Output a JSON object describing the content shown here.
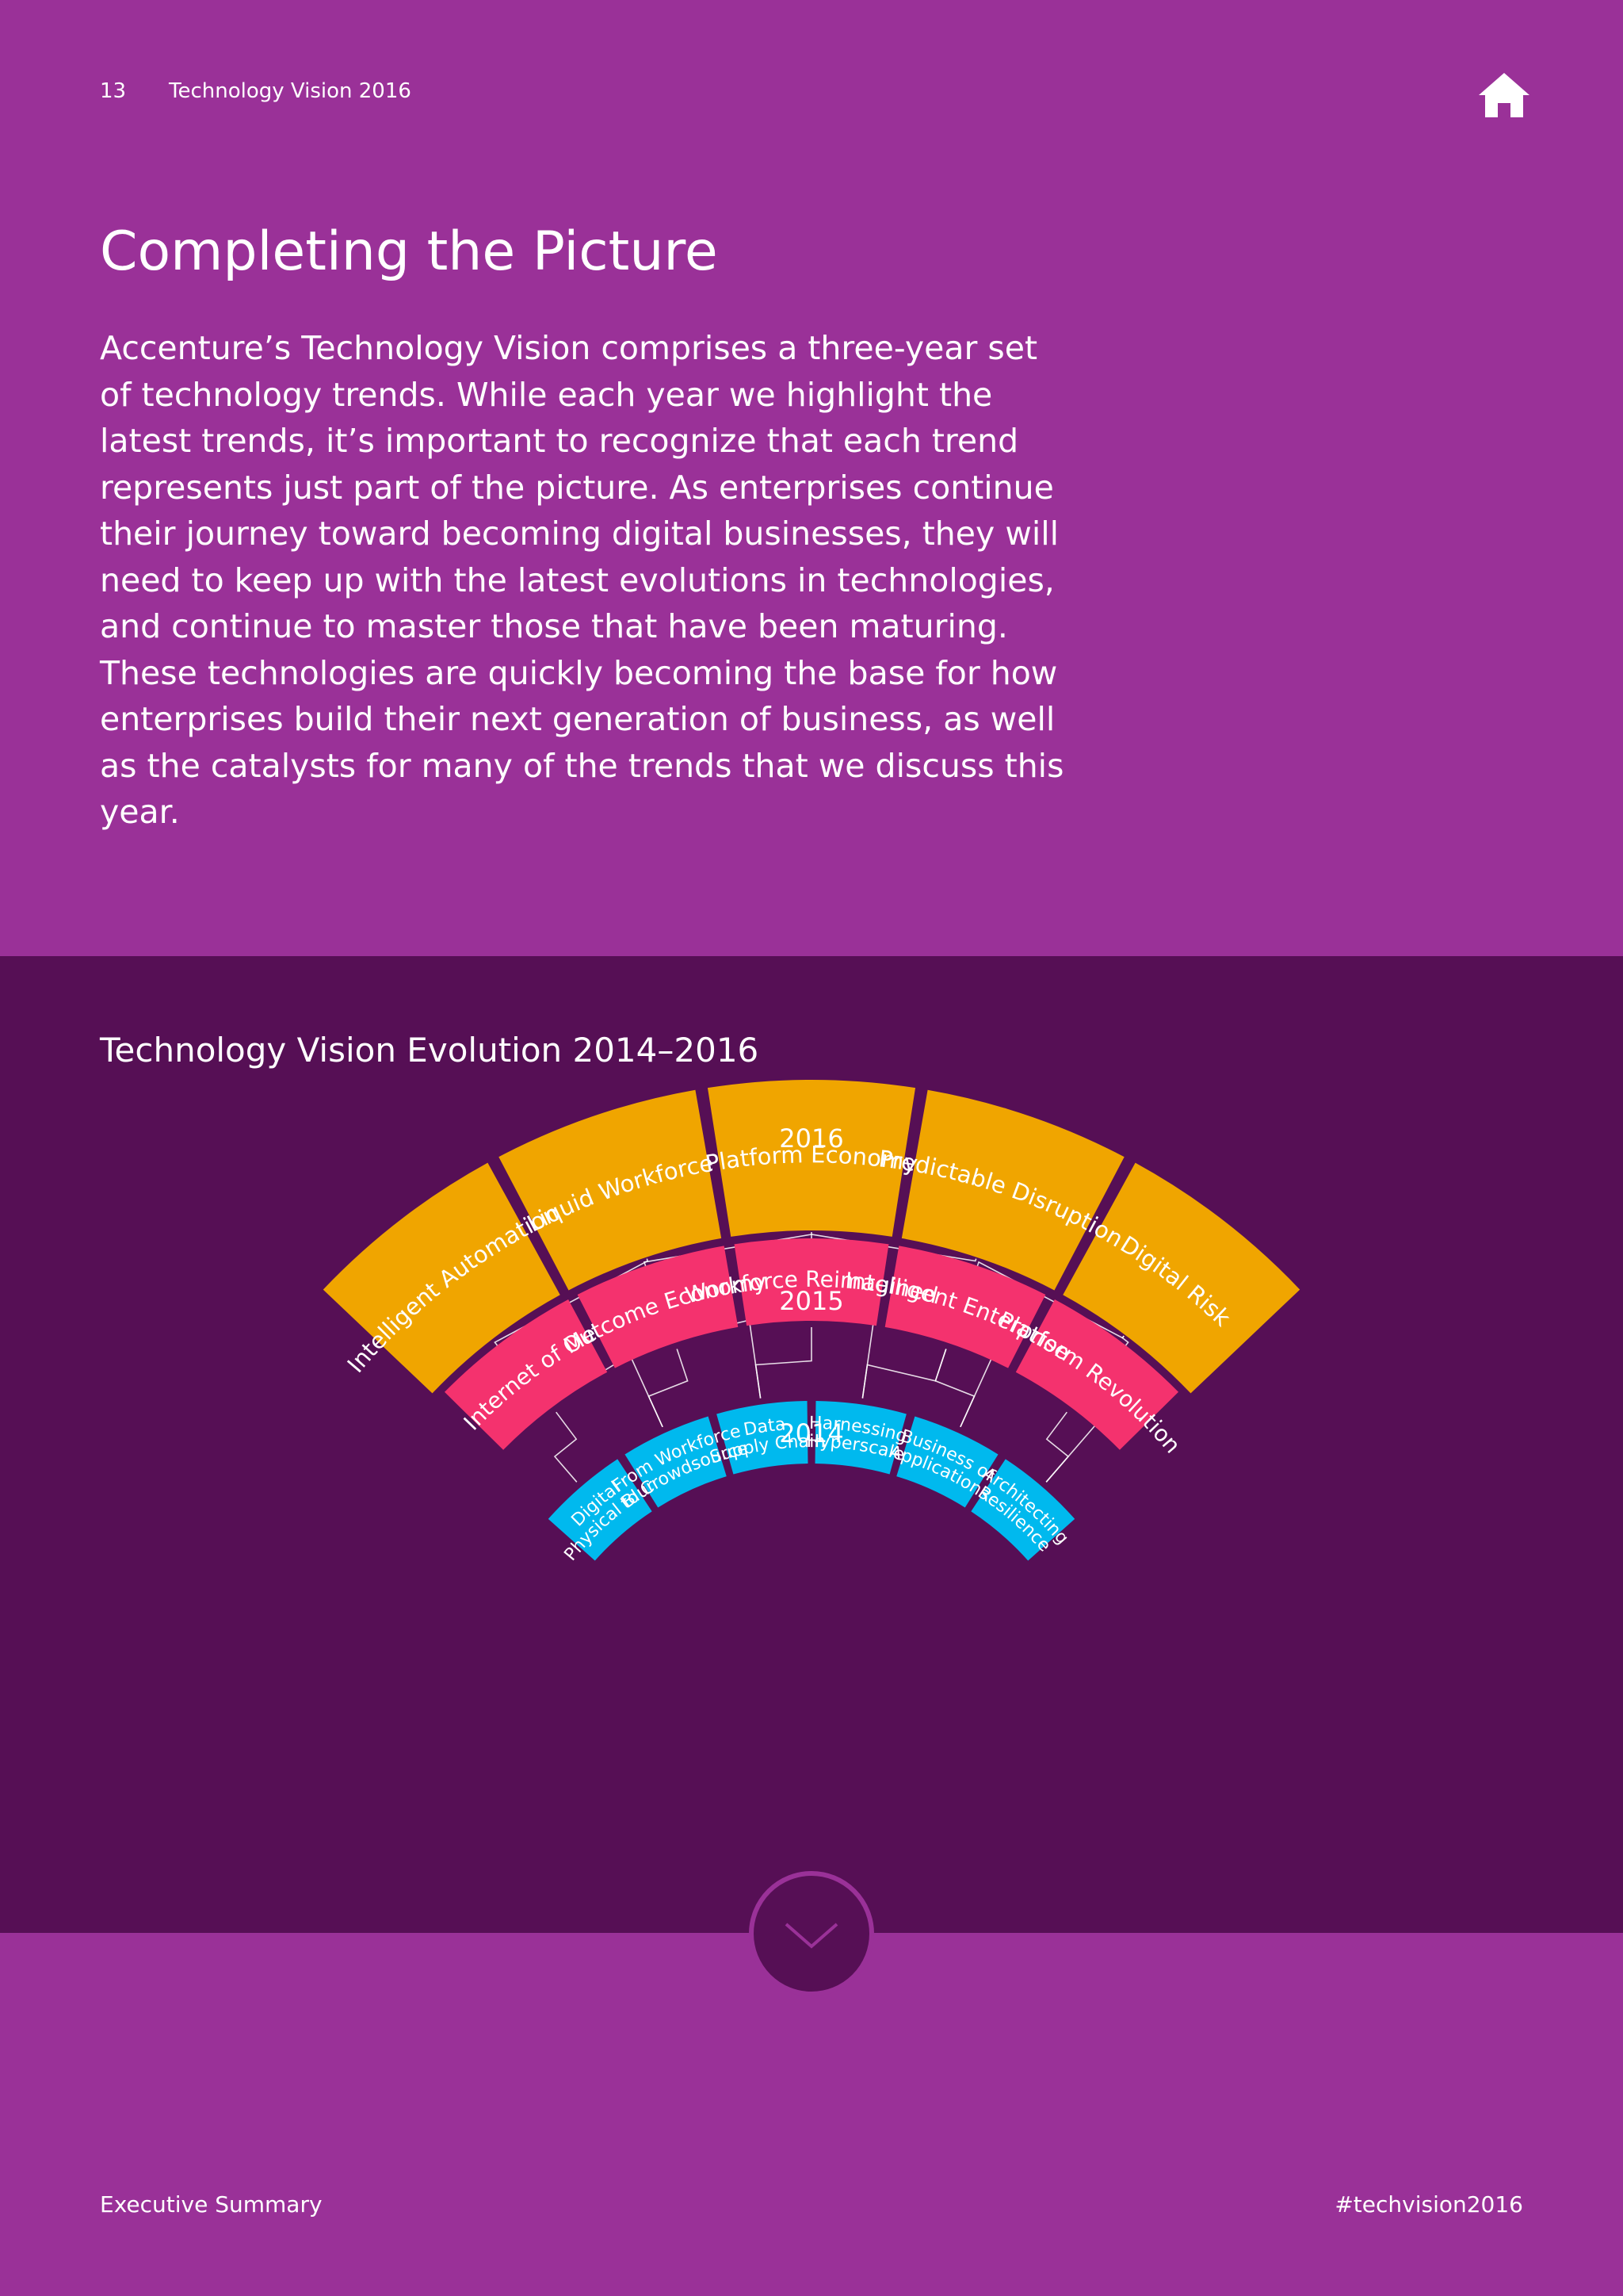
{
  "header": {
    "page_number": "13",
    "document_title": "Technology Vision 2016",
    "home_icon": "home-icon"
  },
  "intro": {
    "title": "Completing the Picture",
    "body": "Accenture’s Technology Vision comprises a three-year set of technology trends. While each year we highlight the latest trends, it’s important to recognize that each trend represents just part of the picture. As enterprises continue their journey toward becoming digital businesses, they will need to keep up with the latest evolutions in technologies, and continue to master those that have been maturing. These technologies are quickly becoming the base for how enterprises build their next generation of business, as well as the catalysts for many of the trends that we discuss this year."
  },
  "diagram": {
    "title": "Technology Vision Evolution 2014–2016",
    "colors": {
      "2016": "#f0a500",
      "2015": "#f4326e",
      "2014": "#00b9ee",
      "connector": "#ffffff",
      "band": "#560f55"
    },
    "rings": [
      {
        "year": "2016",
        "trends": [
          [
            "Intelligent Automation"
          ],
          [
            "Liquid Workforce"
          ],
          [
            "Platform Economy"
          ],
          [
            "Predictable Disruption"
          ],
          [
            "Digital Risk"
          ]
        ]
      },
      {
        "year": "2015",
        "trends": [
          [
            "Internet of Me"
          ],
          [
            "Outcome Economy"
          ],
          [
            "Workforce Reimagined"
          ],
          [
            "Intelligent Enterprise"
          ],
          [
            "Platform Revolution"
          ]
        ]
      },
      {
        "year": "2014",
        "trends": [
          [
            "Digital",
            "Physical Blur"
          ],
          [
            "From Workforce",
            "to Crowdsource"
          ],
          [
            "Data",
            "Supply Chain"
          ],
          [
            "Harnessing",
            "Hyperscale"
          ],
          [
            "Business of",
            "Applications"
          ],
          [
            "Architecting",
            "Resilience"
          ]
        ]
      }
    ]
  },
  "navigation": {
    "scroll_icon": "chevron-down-icon"
  },
  "footer": {
    "section": "Executive Summary",
    "hashtag": "#techvision2016"
  }
}
